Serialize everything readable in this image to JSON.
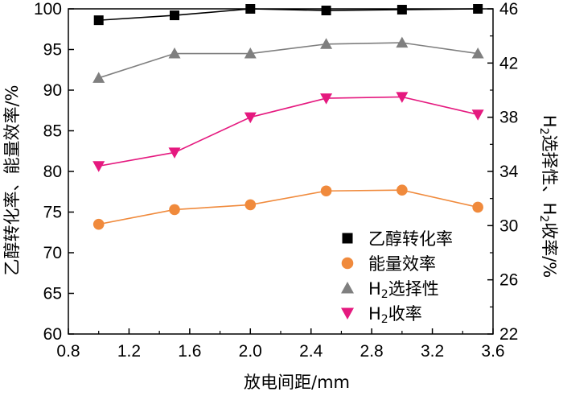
{
  "chart_data": {
    "type": "line",
    "x_axis": {
      "label": "放电间距/mm",
      "range": [
        0.8,
        3.6
      ],
      "ticks": [
        "0.8",
        "1.2",
        "1.6",
        "2.0",
        "2.4",
        "2.8",
        "3.2",
        "3.6"
      ]
    },
    "y_axis_left": {
      "label": "乙醇转化率、能量效率/%",
      "range": [
        60,
        100
      ],
      "ticks": [
        "60",
        "65",
        "70",
        "75",
        "80",
        "85",
        "90",
        "95",
        "100"
      ]
    },
    "y_axis_right": {
      "label_parts": [
        "H",
        "2",
        "选择性、H",
        "2",
        "收率/%"
      ],
      "range": [
        22,
        46
      ],
      "ticks": [
        "22",
        "26",
        "30",
        "34",
        "38",
        "42",
        "46"
      ]
    },
    "x": [
      1.0,
      1.5,
      2.0,
      2.5,
      3.0,
      3.5
    ],
    "series": [
      {
        "name_parts": [
          "乙醇转化率"
        ],
        "axis": "left",
        "marker": "square",
        "color": "#000000",
        "line_color": "#000000",
        "values": [
          98.6,
          99.2,
          100.0,
          99.8,
          99.9,
          100.0
        ]
      },
      {
        "name_parts": [
          "能量效率"
        ],
        "axis": "left",
        "marker": "circle",
        "color": "#f08a3c",
        "line_color": "#f08a3c",
        "values": [
          73.5,
          75.3,
          75.9,
          77.6,
          77.7,
          75.6
        ]
      },
      {
        "name_parts": [
          "H",
          "2",
          "选择性"
        ],
        "axis": "right",
        "marker": "triangle-up",
        "color": "#7f7f7f",
        "line_color": "#7f7f7f",
        "values": [
          40.9,
          42.7,
          42.7,
          43.4,
          43.5,
          42.7
        ]
      },
      {
        "name_parts": [
          "H",
          "2",
          "收率"
        ],
        "axis": "right",
        "marker": "triangle-down",
        "color": "#e5197f",
        "line_color": "#e5197f",
        "values": [
          34.4,
          35.4,
          38.0,
          39.4,
          39.5,
          38.2
        ]
      }
    ],
    "legend_position": "bottom-right-inside",
    "grid": false
  }
}
